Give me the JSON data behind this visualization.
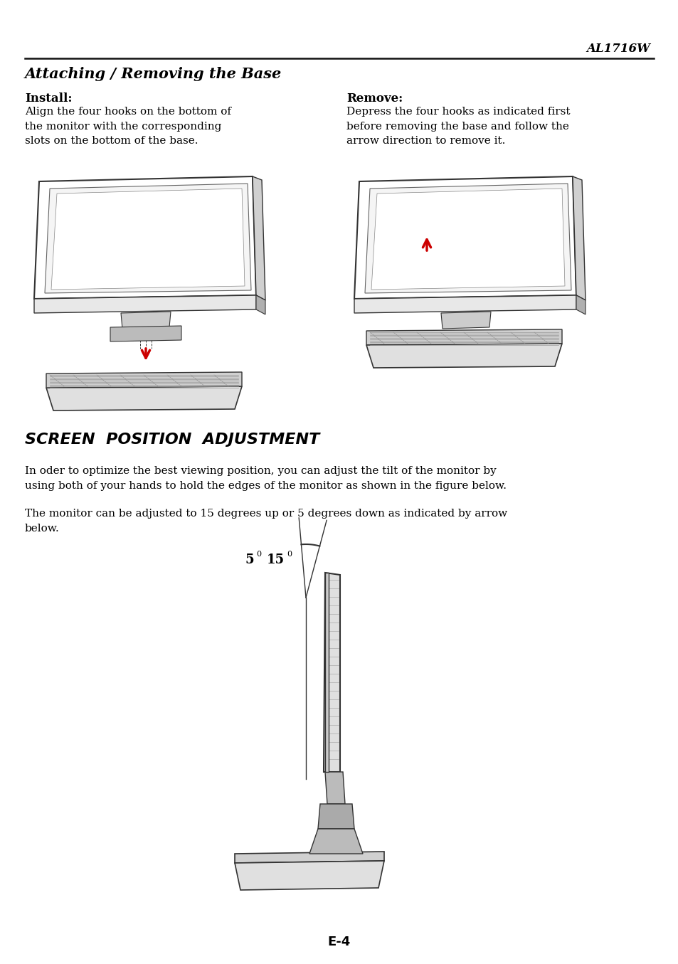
{
  "page_title": "AL1716W",
  "section1_title": "Attaching / Removing the Base",
  "install_label": "Install:",
  "install_text": "Align the four hooks on the bottom of\nthe monitor with the corresponding\nslots on the bottom of the base.",
  "remove_label": "Remove:",
  "remove_text": "Depress the four hooks as indicated first\nbefore removing the base and follow the\narrow direction to remove it.",
  "section2_title": "SCREEN  POSITION  ADJUSTMENT",
  "section2_para1": "In oder to optimize the best viewing position, you can adjust the tilt of the monitor by\nusing both of your hands to hold the edges of the monitor as shown in the figure below.",
  "section2_para2": "The monitor can be adjusted to 15 degrees up or 5 degrees down as indicated by arrow\nbelow.",
  "page_number": "E-4",
  "acer_color": "#1a7a62",
  "bg_color": "#ffffff",
  "text_color": "#000000",
  "line_color": "#000000",
  "red_arrow": "#cc0000",
  "dark_gray": "#333333",
  "mid_gray": "#888888",
  "light_gray": "#dddddd"
}
